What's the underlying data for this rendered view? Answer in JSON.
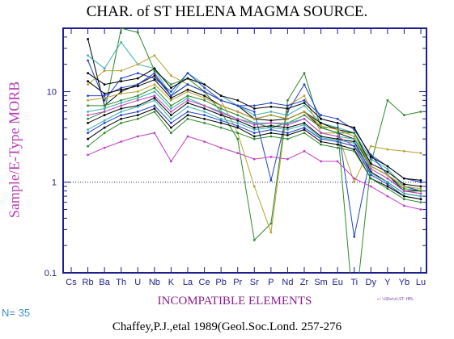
{
  "chart_data": {
    "type": "line",
    "title": "CHAR. of ST HELENA MAGMA SOURCE.",
    "ylabel": "Sample/E-Type MORB",
    "xlabel": "INCOMPATIBLE ELEMENTS",
    "yscale": "log",
    "ylim": [
      0.1,
      50
    ],
    "yticks": [
      0.1,
      1,
      10
    ],
    "ytick_labels": [
      "0.1",
      "1",
      "10"
    ],
    "reference_line": 1,
    "categories": [
      "Cs",
      "Rb",
      "Ba",
      "Th",
      "U",
      "Nb",
      "K",
      "La",
      "Ce",
      "Pb",
      "Pr",
      "Sr",
      "P",
      "Nd",
      "Zr",
      "Sm",
      "Eu",
      "Ti",
      "Dy",
      "Y",
      "Yb",
      "Lu"
    ],
    "count_label": "N= 35",
    "file_label": "c:\\GData\\ST-HEL",
    "source": "Chaffey,P.J.,etal 1989(Geol.Soc.Lond. 257-276",
    "series": [
      {
        "color": "#000000",
        "values": [
          null,
          38,
          7,
          10,
          12,
          15,
          9,
          12,
          10,
          8,
          7,
          5,
          5.5,
          5,
          6,
          4,
          3.5,
          3,
          1.5,
          1.2,
          0.8,
          0.8
        ]
      },
      {
        "color": "#3ab0b0",
        "values": [
          null,
          25,
          18,
          35,
          20,
          18,
          9,
          16,
          12,
          9,
          7,
          5.5,
          6,
          5.5,
          7,
          4.5,
          4,
          3.5,
          1.8,
          1.4,
          0.9,
          0.8
        ]
      },
      {
        "color": "#2a8a2a",
        "values": [
          null,
          5,
          6,
          50,
          45,
          17,
          12,
          14,
          10,
          6,
          3,
          0.23,
          0.35,
          8,
          16,
          4,
          4,
          0.03,
          1.6,
          8,
          5.5,
          6
        ]
      },
      {
        "color": "#2040c8",
        "values": [
          null,
          22,
          8,
          14,
          16,
          14,
          10,
          16,
          11,
          8,
          7,
          6,
          1.05,
          6,
          12,
          5,
          4.5,
          0.25,
          2,
          1.2,
          0.9,
          0.8
        ]
      },
      {
        "color": "#b8a030",
        "values": [
          null,
          12,
          17,
          17,
          20,
          25,
          15,
          12,
          10,
          8,
          3.5,
          0.9,
          0.28,
          7,
          9,
          3.5,
          3.5,
          1,
          2.5,
          2.3,
          2.2,
          2.1
        ]
      },
      {
        "color": "#c040c0",
        "values": [
          null,
          2,
          2.4,
          2.8,
          3.2,
          3.5,
          1.7,
          3.2,
          2.8,
          2.4,
          2.1,
          1.8,
          1.9,
          1.8,
          2.2,
          1.7,
          1.7,
          1.1,
          0.9,
          0.7,
          0.55,
          0.5
        ]
      },
      {
        "color": "#2040c8",
        "values": [
          null,
          9,
          9,
          11,
          12,
          16,
          9,
          12,
          10,
          8,
          7,
          7,
          7.5,
          7,
          8,
          5.5,
          5,
          3.8,
          2,
          1.5,
          1.1,
          1
        ]
      },
      {
        "color": "#000000",
        "values": [
          null,
          13,
          9.5,
          10.5,
          11.5,
          13.5,
          8.5,
          10.5,
          9,
          7,
          6,
          5,
          4.8,
          5,
          6,
          4.5,
          3.8,
          3.5,
          1.6,
          1.3,
          0.95,
          0.9
        ]
      },
      {
        "color": "#2a8a2a",
        "values": [
          null,
          7,
          7,
          8,
          9,
          11,
          7,
          9,
          8,
          6.5,
          5.5,
          4.5,
          4,
          4.5,
          5.5,
          4,
          3.5,
          3.5,
          1.5,
          1.2,
          0.85,
          0.8
        ]
      },
      {
        "color": "#3ab0b0",
        "values": [
          null,
          6,
          6.5,
          7.5,
          8.5,
          10,
          6.5,
          8.5,
          7,
          6,
          5,
          4.5,
          4.5,
          4.5,
          5,
          3.5,
          3.2,
          3,
          1.4,
          1.1,
          0.8,
          0.75
        ]
      },
      {
        "color": "#000000",
        "values": [
          null,
          4.5,
          5.5,
          6.5,
          7,
          8.5,
          5.5,
          7.5,
          6.5,
          5.5,
          4.8,
          4,
          4.2,
          4,
          4.5,
          3.2,
          3,
          2.8,
          1.3,
          1,
          0.75,
          0.7
        ]
      },
      {
        "color": "#c040c0",
        "values": [
          null,
          5.5,
          6,
          7,
          8,
          9,
          6,
          8,
          7,
          5.8,
          5,
          4.3,
          4.5,
          4.3,
          5,
          3.5,
          3.2,
          2.5,
          1.4,
          1.1,
          0.8,
          0.75
        ]
      },
      {
        "color": "#2040c8",
        "values": [
          null,
          3.5,
          4.5,
          5.5,
          6,
          7,
          4.5,
          6,
          5.5,
          4.8,
          4.2,
          3.5,
          3.8,
          3.5,
          4,
          3,
          2.8,
          2.5,
          1.2,
          0.95,
          0.7,
          0.65
        ]
      },
      {
        "color": "#000000",
        "values": [
          null,
          3,
          4,
          5,
          5.5,
          6.5,
          4,
          5.5,
          5,
          4.5,
          4,
          3.2,
          3.5,
          3.3,
          3.8,
          2.8,
          2.6,
          2.3,
          1.1,
          0.9,
          0.7,
          0.65
        ]
      },
      {
        "color": "#b8a030",
        "values": [
          null,
          8,
          8.5,
          9.5,
          10,
          12,
          8,
          10,
          8.5,
          7,
          6,
          5,
          5.5,
          5,
          6,
          4.2,
          3.8,
          3.2,
          1.5,
          1.2,
          0.9,
          0.85
        ]
      },
      {
        "color": "#2a8a2a",
        "values": [
          null,
          2.5,
          3.5,
          4.5,
          5,
          6,
          3.5,
          5,
          4.5,
          4,
          3.5,
          3,
          3.2,
          3,
          3.5,
          2.6,
          2.4,
          2.2,
          1.1,
          0.85,
          0.65,
          0.6
        ]
      },
      {
        "color": "#000000",
        "values": [
          null,
          16,
          12,
          13,
          14,
          18,
          11,
          14,
          12,
          9,
          8,
          6.5,
          6.8,
          6.5,
          7.5,
          5,
          4.5,
          4,
          1.9,
          1.5,
          1.1,
          1.05
        ]
      },
      {
        "color": "#3ab0b0",
        "values": [
          null,
          3.8,
          4.8,
          6,
          6.8,
          8,
          5,
          6.8,
          6,
          5,
          4.5,
          3.8,
          4,
          3.8,
          4.3,
          3.1,
          2.9,
          2.7,
          1.25,
          1,
          0.75,
          0.7
        ]
      }
    ]
  }
}
